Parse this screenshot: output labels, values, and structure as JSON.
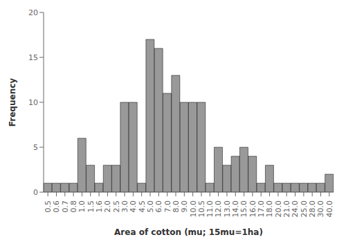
{
  "chart_data": {
    "type": "bar",
    "categories": [
      "0.5",
      "0.6",
      "0.7",
      "0.8",
      "1.0",
      "1.5",
      "1.6",
      "2.0",
      "2.5",
      "3.0",
      "4.0",
      "4.5",
      "5.0",
      "6.0",
      "7.0",
      "8.0",
      "9.0",
      "10.0",
      "10.5",
      "11.0",
      "12.0",
      "13.0",
      "14.0",
      "15.0",
      "16.0",
      "17.0",
      "18.0",
      "20.0",
      "21.0",
      "24.0",
      "25.0",
      "28.0",
      "30.0",
      "40.0"
    ],
    "values": [
      1,
      1,
      1,
      1,
      6,
      3,
      1,
      3,
      3,
      10,
      10,
      1,
      17,
      16,
      11,
      13,
      10,
      10,
      10,
      1,
      5,
      3,
      4,
      5,
      4,
      1,
      3,
      1,
      1,
      1,
      1,
      1,
      1,
      2
    ],
    "color": "#999999",
    "xlabel": "Area of cotton (mu; 15mu=1ha)",
    "ylabel": "Frequency",
    "ylim": [
      0,
      20
    ],
    "yticks": [
      0,
      5,
      10,
      15,
      20
    ]
  }
}
